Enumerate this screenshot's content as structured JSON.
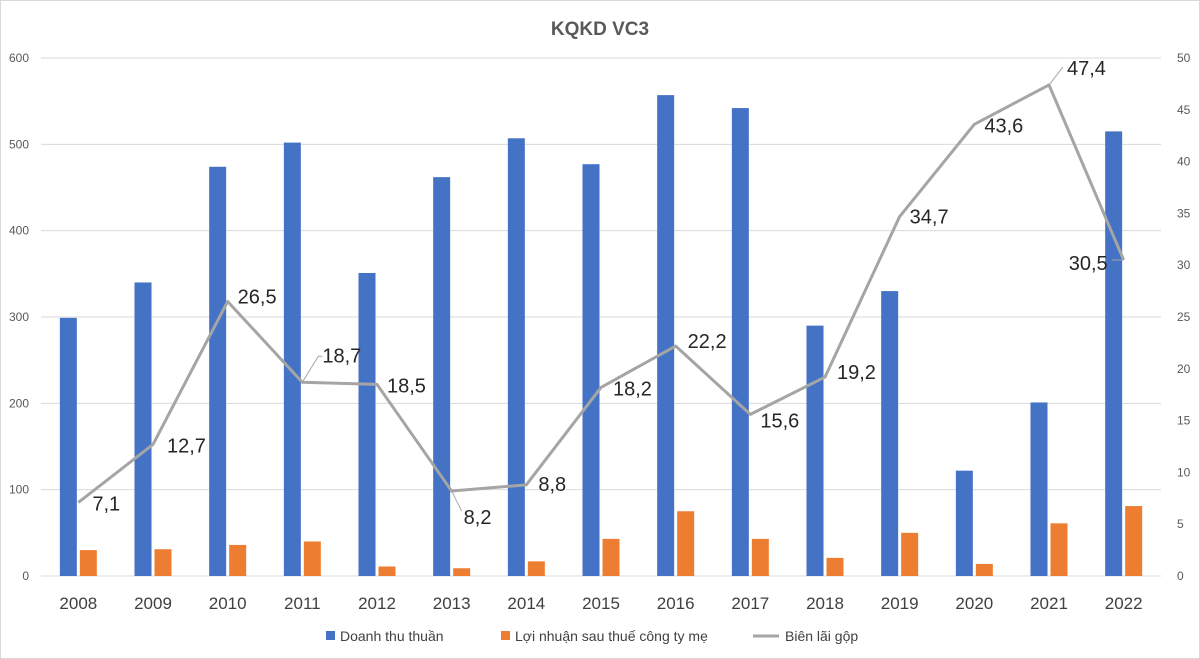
{
  "chart_data": {
    "type": "bar",
    "title": "KQKD VC3",
    "categories": [
      "2008",
      "2009",
      "2010",
      "2011",
      "2012",
      "2013",
      "2014",
      "2015",
      "2016",
      "2017",
      "2018",
      "2019",
      "2020",
      "2021",
      "2022"
    ],
    "left_axis": {
      "min": 0,
      "max": 600,
      "step": 100,
      "ticks": [
        "0",
        "100",
        "200",
        "300",
        "400",
        "500",
        "600"
      ]
    },
    "right_axis": {
      "min": 0,
      "max": 50,
      "step": 5,
      "ticks": [
        "0",
        "5",
        "10",
        "15",
        "20",
        "25",
        "30",
        "35",
        "40",
        "45",
        "50"
      ]
    },
    "series": [
      {
        "name": "Doanh thu thuần",
        "type": "bar",
        "axis": "left",
        "color": "#4472c4",
        "values": [
          299,
          340,
          474,
          502,
          351,
          462,
          507,
          477,
          557,
          542,
          290,
          330,
          122,
          201,
          515
        ]
      },
      {
        "name": "Lợi nhuận sau thuế công ty mẹ",
        "type": "bar",
        "axis": "left",
        "color": "#ed7d31",
        "values": [
          30,
          31,
          36,
          40,
          11,
          9,
          17,
          43,
          75,
          43,
          21,
          50,
          14,
          61,
          81
        ]
      },
      {
        "name": "Biên lãi gộp",
        "type": "line",
        "axis": "right",
        "color": "#a5a5a5",
        "values": [
          7.1,
          12.7,
          26.5,
          18.7,
          18.5,
          8.2,
          8.8,
          18.2,
          22.2,
          15.6,
          19.2,
          34.7,
          43.6,
          47.4,
          30.5
        ],
        "labels": [
          "7,1",
          "12,7",
          "26,5",
          "18,7",
          "18,5",
          "8,2",
          "8,8",
          "18,2",
          "22,2",
          "15,6",
          "19,2",
          "34,7",
          "43,6",
          "47,4",
          "30,5"
        ]
      }
    ],
    "legend": {
      "position": "bottom"
    },
    "grid": true
  }
}
